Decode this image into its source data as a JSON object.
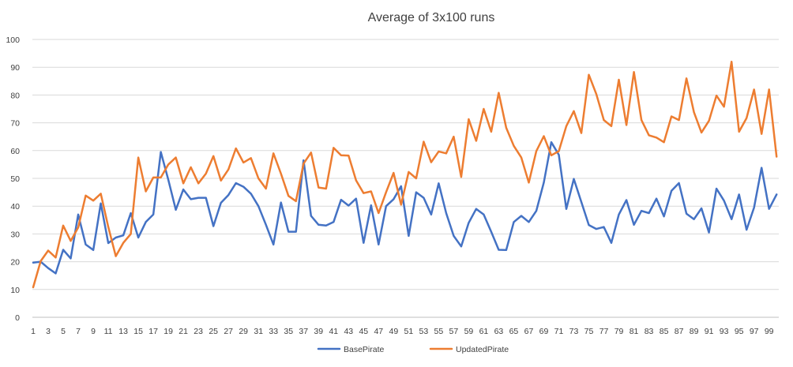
{
  "chart_data": {
    "type": "line",
    "title": "Average of 3x100 runs",
    "xlabel": "",
    "ylabel": "",
    "ylim": [
      0,
      100
    ],
    "yticks": [
      0,
      10,
      20,
      30,
      40,
      50,
      60,
      70,
      80,
      90,
      100
    ],
    "x": [
      1,
      2,
      3,
      4,
      5,
      6,
      7,
      8,
      9,
      10,
      11,
      12,
      13,
      14,
      15,
      16,
      17,
      18,
      19,
      20,
      21,
      22,
      23,
      24,
      25,
      26,
      27,
      28,
      29,
      30,
      31,
      32,
      33,
      34,
      35,
      36,
      37,
      38,
      39,
      40,
      41,
      42,
      43,
      44,
      45,
      46,
      47,
      48,
      49,
      50,
      51,
      52,
      53,
      54,
      55,
      56,
      57,
      58,
      59,
      60,
      61,
      62,
      63,
      64,
      65,
      66,
      67,
      68,
      69,
      70,
      71,
      72,
      73,
      74,
      75,
      76,
      77,
      78,
      79,
      80,
      81,
      82,
      83,
      84,
      85,
      86,
      87,
      88,
      89,
      90,
      91,
      92,
      93,
      94,
      95,
      96,
      97,
      98,
      99,
      100
    ],
    "xtick_labels": [
      "1",
      "3",
      "5",
      "7",
      "9",
      "11",
      "13",
      "15",
      "17",
      "19",
      "21",
      "23",
      "25",
      "27",
      "29",
      "31",
      "33",
      "35",
      "37",
      "39",
      "41",
      "43",
      "45",
      "47",
      "49",
      "51",
      "53",
      "55",
      "57",
      "59",
      "61",
      "63",
      "65",
      "67",
      "69",
      "71",
      "73",
      "75",
      "77",
      "79",
      "81",
      "83",
      "85",
      "87",
      "89",
      "91",
      "93",
      "95",
      "97",
      "99"
    ],
    "grid": "horizontal",
    "legend_position": "bottom",
    "series": [
      {
        "name": "BasePirate",
        "color": "#4472C4",
        "values": [
          19.7,
          20,
          17.7,
          15.8,
          24.3,
          21.2,
          37,
          26.2,
          24.2,
          41,
          26.7,
          28.7,
          29.5,
          37.5,
          28.7,
          34.3,
          37,
          59.5,
          49.5,
          38.7,
          46,
          42.5,
          43,
          43,
          32.8,
          41.2,
          44,
          48.3,
          47,
          44.5,
          40,
          33.3,
          26.2,
          41.3,
          30.8,
          30.8,
          56.5,
          36.5,
          33.3,
          33,
          34.3,
          42.3,
          40.2,
          42.7,
          26.8,
          40.3,
          26.2,
          40,
          42.5,
          47.2,
          29.3,
          45,
          43,
          37,
          48.2,
          37.5,
          29.3,
          25.5,
          34,
          39,
          37,
          30.8,
          24.3,
          24.2,
          34.3,
          36.5,
          34.3,
          38.3,
          48.5,
          63,
          58.5,
          39,
          49.8,
          41.5,
          33.2,
          31.8,
          32.5,
          26.8,
          37,
          42.2,
          33.3,
          38.3,
          37.5,
          42.7,
          36.3,
          45.5,
          48.3,
          37.3,
          35.3,
          39.2,
          30.5,
          46.3,
          42,
          35.3,
          44.2,
          31.5,
          39.5,
          53.8,
          39,
          44.2
        ]
      },
      {
        "name": "UpdatedPirate",
        "color": "#ED7D31",
        "values": [
          10.8,
          20.2,
          24,
          21.5,
          33,
          27.5,
          32.3,
          43.8,
          42,
          44.5,
          32.5,
          22,
          26.8,
          30,
          57.5,
          45.3,
          50.3,
          50.3,
          55,
          57.5,
          48.2,
          54,
          48.2,
          51.7,
          58,
          49.2,
          53.2,
          60.8,
          55.7,
          57.3,
          50,
          46.3,
          59,
          51.7,
          43.7,
          41.8,
          55.3,
          59.3,
          46.7,
          46.3,
          61,
          58.3,
          58.2,
          49.3,
          44.7,
          45.3,
          37.5,
          45,
          52,
          40.5,
          52.3,
          50,
          63.2,
          55.8,
          59.7,
          59,
          65,
          50.5,
          71.3,
          63.5,
          75,
          66.8,
          80.8,
          68.2,
          61.7,
          57.5,
          48.5,
          59.8,
          65.2,
          58.3,
          59.8,
          68.8,
          74.2,
          66.3,
          87.3,
          80.3,
          71,
          68.8,
          85.5,
          69.2,
          88.3,
          71,
          65.5,
          64.7,
          63,
          72.3,
          71,
          86,
          73.8,
          66.5,
          70.7,
          79.8,
          75.8,
          92,
          66.8,
          71.7,
          82,
          66,
          82,
          57.8
        ]
      }
    ]
  }
}
